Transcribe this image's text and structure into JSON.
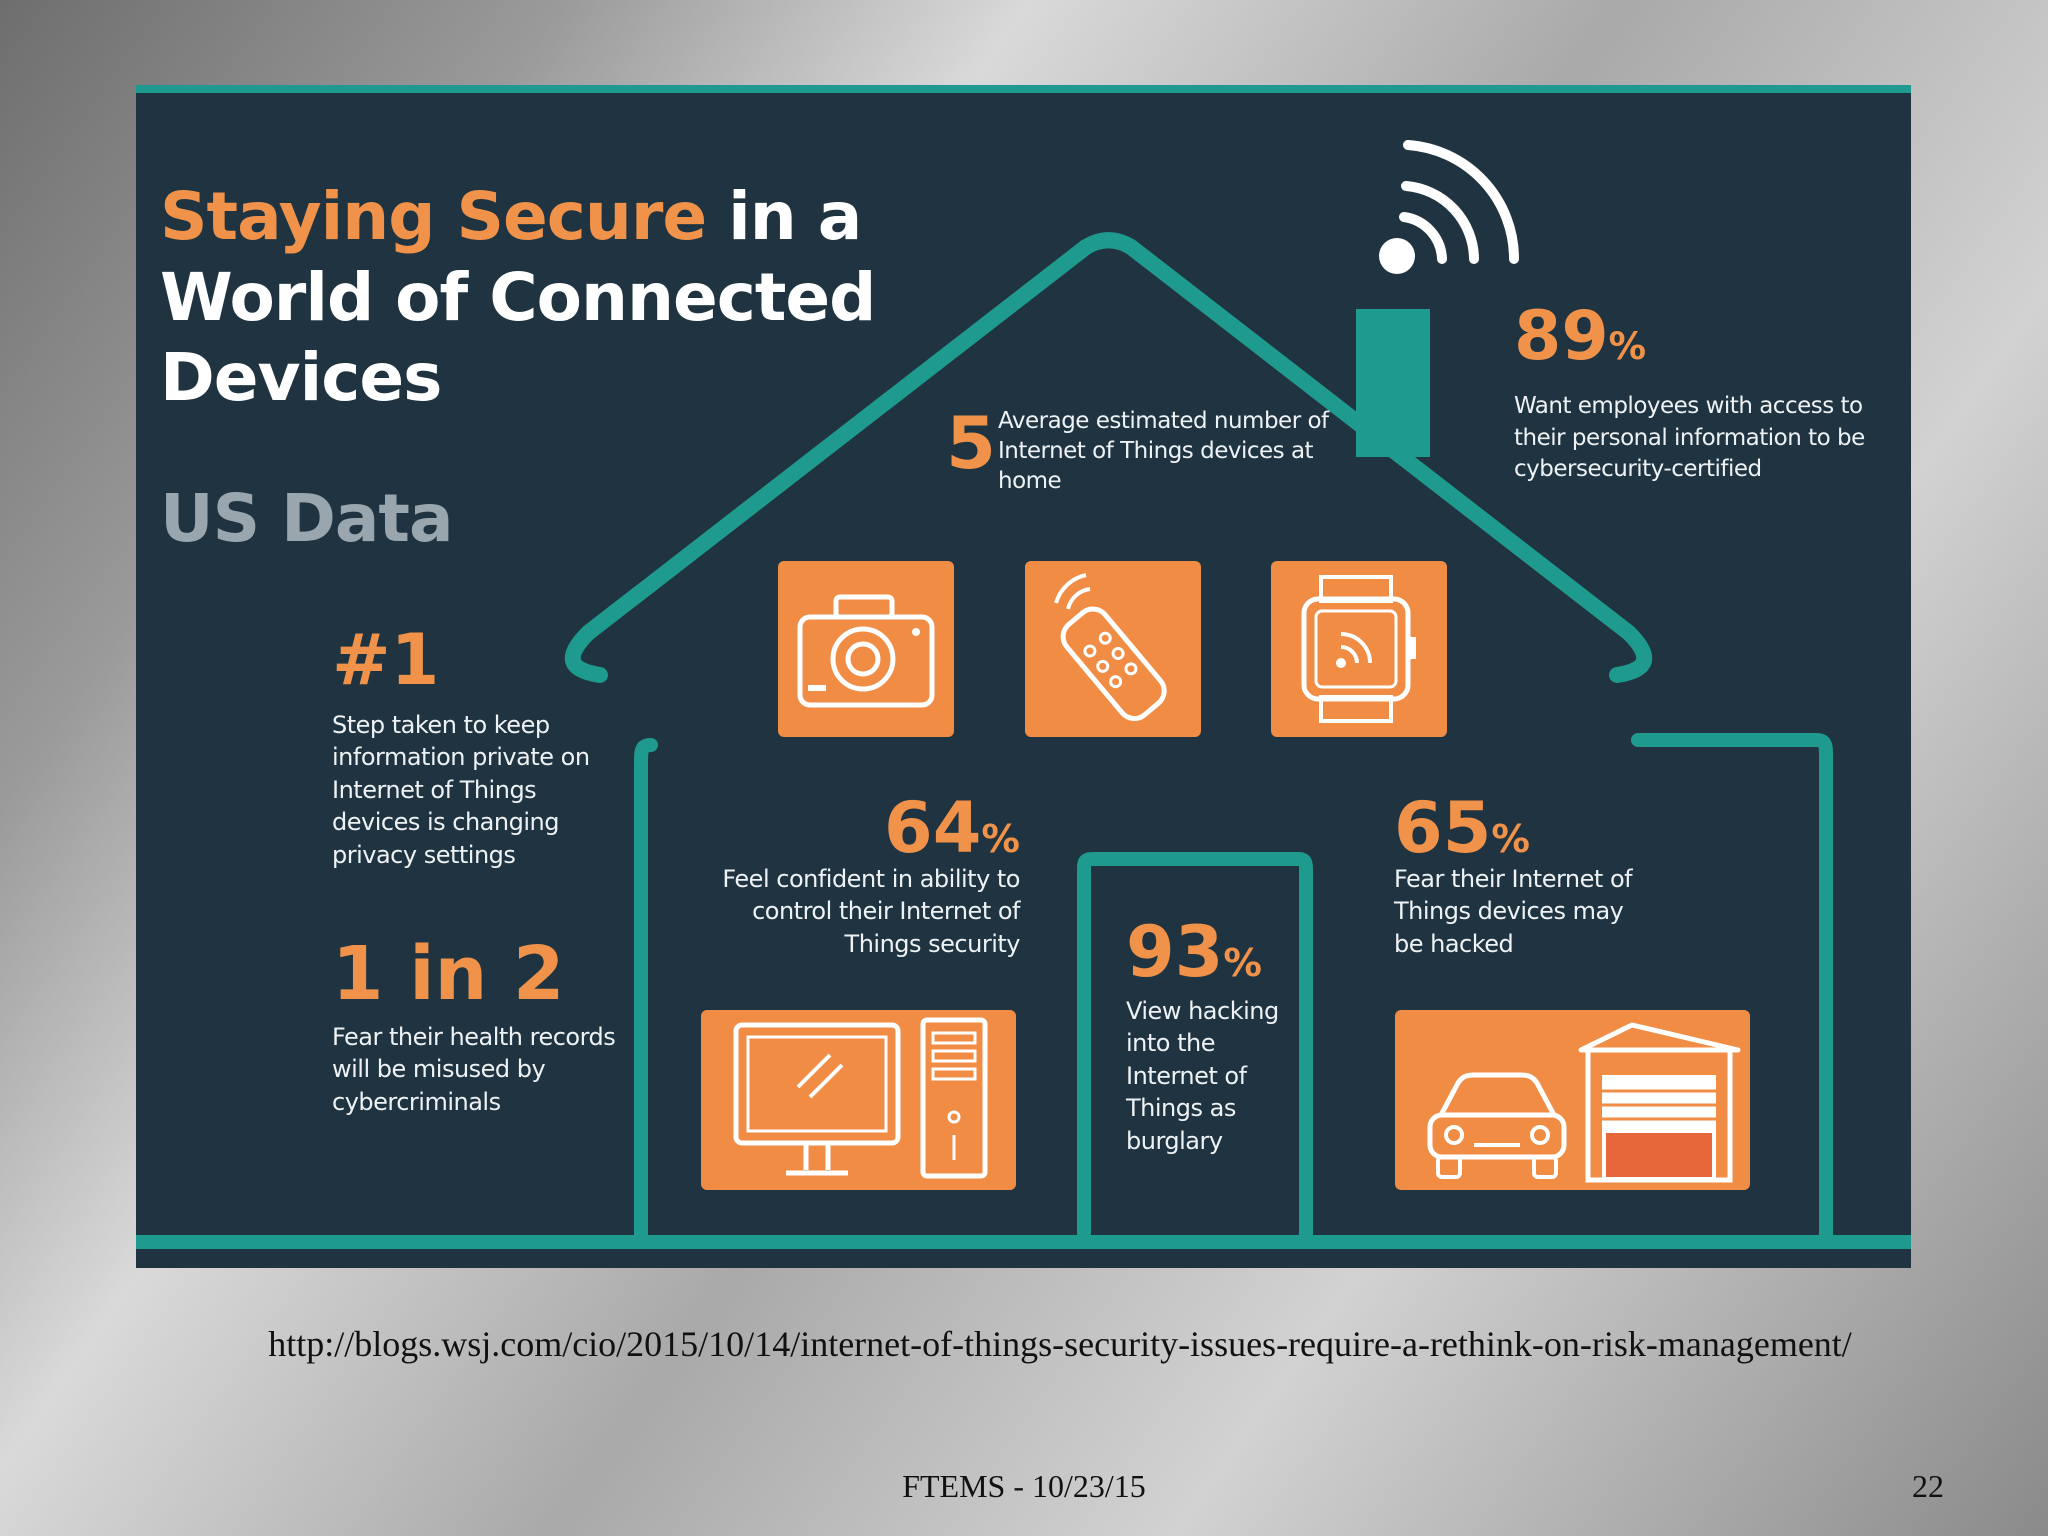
{
  "infographic": {
    "title_part1": "Staying Secure",
    "title_part2": " in a",
    "title_line2": "World of Connected",
    "title_line3": "Devices",
    "subtitle": "US Data",
    "stat_devices": {
      "value": "5",
      "text": "Average estimated number of Internet of Things devices at home"
    },
    "stat_89": {
      "value": "89",
      "unit": "%",
      "text": "Want employees with access to their personal information to be cybersecurity-certified"
    },
    "stat_rank": {
      "value": "#1",
      "text": "Step taken to keep information private on Internet of Things devices is changing privacy settings"
    },
    "stat_1in2": {
      "value": "1 in 2",
      "text": "Fear their health records will be misused by cybercriminals"
    },
    "stat_64": {
      "value": "64",
      "unit": "%",
      "text": "Feel confident in ability to control their Internet of Things security"
    },
    "stat_65": {
      "value": "65",
      "unit": "%",
      "text": "Fear their Internet of Things devices may be hacked"
    },
    "stat_93": {
      "value": "93",
      "unit": "%",
      "text": "View hacking into the Internet of Things as burglary"
    },
    "icons": [
      "camera-icon",
      "remote-control-icon",
      "smartwatch-icon",
      "desktop-computer-icon",
      "car-garage-icon",
      "wifi-icon"
    ],
    "colors": {
      "background": "#1f3440",
      "accent_teal": "#1f9a8e",
      "accent_orange": "#f08c44",
      "text": "#ffffff",
      "subtitle_gray": "#9aa6ae"
    }
  },
  "footer": {
    "source_url": "http://blogs.wsj.com/cio/2015/10/14/internet-of-things-security-issues-require-a-rethink-on-risk-management/",
    "date_label": "FTEMS - 10/23/15",
    "page_number": "22"
  }
}
